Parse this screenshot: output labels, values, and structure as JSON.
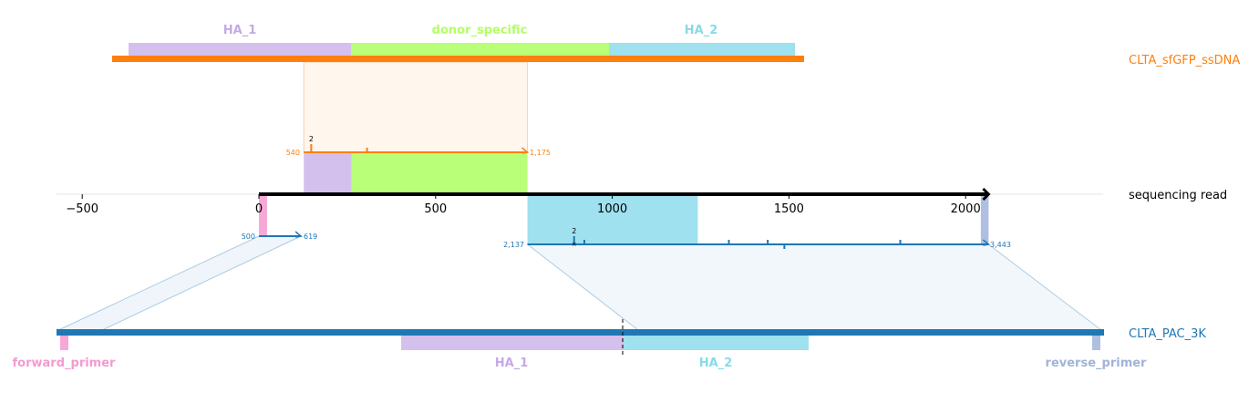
{
  "colors": {
    "donor": "#ff7f0e",
    "target": "#1f77b4",
    "read": "#000000",
    "ha1": "#d4c0ec",
    "donor_specific": "#b9ff78",
    "ha2": "#9fe1ee",
    "forward_primer": "#f7a8d8",
    "reverse_primer": "#b0bee0",
    "ha1_text": "#c5a9e6",
    "donor_specific_text": "#b2ff66",
    "ha2_text": "#87dbe9",
    "forward_primer_text": "#f49ad0",
    "reverse_primer_text": "#a2b3d8"
  },
  "donor": {
    "name": "CLTA_sfGFP_ssDNA",
    "features": [
      {
        "name": "HA_1",
        "start": -370,
        "end": 260,
        "color_key": "ha1"
      },
      {
        "name": "donor_specific",
        "start": 260,
        "end": 990,
        "color_key": "donor_specific"
      },
      {
        "name": "HA_2",
        "start": 990,
        "end": 1515,
        "color_key": "ha2"
      }
    ],
    "bar_start": -415,
    "bar_end": 1545
  },
  "target": {
    "name": "CLTA_PAC_3K",
    "features": [
      {
        "name": "forward_primer",
        "start": -563,
        "end": -540,
        "color_key": "forward_primer",
        "label_pos": -555
      },
      {
        "name": "HA_1",
        "start": 390,
        "end": 1017,
        "color_key": "ha1",
        "label_pos": 705
      },
      {
        "name": "HA_2",
        "start": 1017,
        "end": 1563,
        "color_key": "ha2",
        "label_pos": 1283
      },
      {
        "name": "reverse_primer",
        "start": 2345,
        "end": 2367,
        "color_key": "reverse_primer",
        "label_pos": 2356
      }
    ],
    "bar_start": -563,
    "bar_end": 2367,
    "cut_site": 1017
  },
  "read": {
    "name": "sequencing read",
    "start": 0,
    "end": 2065
  },
  "alignments": {
    "donor": {
      "query_start": 127,
      "query_end": 760,
      "ref_start_label": "540",
      "ref_end_label": "1,175",
      "ref_start": 540,
      "ref_end": 1175,
      "indels": [
        {
          "q": 148,
          "label": "2"
        },
        {
          "q": 306,
          "label": ""
        }
      ],
      "feature_fills": [
        {
          "start": 127,
          "end": 262,
          "color_key": "ha1"
        },
        {
          "start": 262,
          "end": 760,
          "color_key": "donor_specific"
        }
      ]
    },
    "target_left": {
      "query_start": 0,
      "query_end": 119,
      "ref_start_label": "500",
      "ref_end_label": "619",
      "ref_start": 500,
      "ref_end": 619,
      "feature_fills": [
        {
          "start": 0,
          "end": 23,
          "color_key": "forward_primer"
        }
      ]
    },
    "target_right": {
      "query_start": 760,
      "query_end": 2065,
      "ref_start_label": "2,137",
      "ref_end_label": "3,443",
      "ref_start": 2137,
      "ref_end": 3443,
      "indels": [
        {
          "q": 892,
          "label": "2"
        },
        {
          "q": 921,
          "label": ""
        },
        {
          "q": 1330,
          "label": ""
        },
        {
          "q": 1440,
          "label": ""
        },
        {
          "q": 1487,
          "label": ""
        },
        {
          "q": 1815,
          "label": ""
        }
      ],
      "feature_fills": [
        {
          "start": 760,
          "end": 1242,
          "color_key": "ha2"
        },
        {
          "start": 2043,
          "end": 2065,
          "color_key": "reverse_primer"
        }
      ]
    }
  },
  "axis": {
    "ticks": [
      -500,
      0,
      500,
      1000,
      1500,
      2000
    ],
    "tick_labels": [
      "−500",
      "0",
      "500",
      "1000",
      "1500",
      "2000"
    ],
    "xlim": [
      -590,
      2380
    ]
  }
}
